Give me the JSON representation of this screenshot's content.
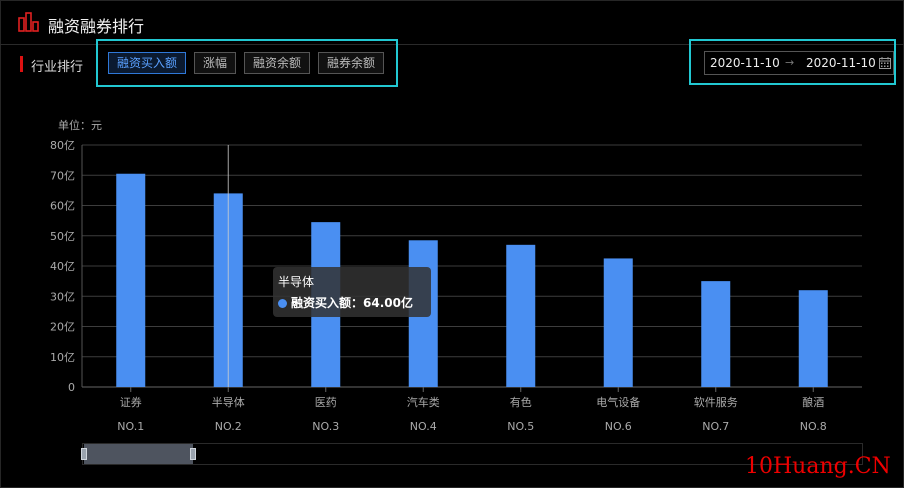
{
  "header": {
    "title": "融资融券排行",
    "logo_icon": "bar-chart-icon"
  },
  "section": {
    "label": "行业排行"
  },
  "tabs": [
    {
      "label": "融资买入额",
      "active": true
    },
    {
      "label": "涨幅",
      "active": false
    },
    {
      "label": "融资余额",
      "active": false
    },
    {
      "label": "融券余额",
      "active": false
    }
  ],
  "date_range": {
    "start": "2020-11-10",
    "separator": "→",
    "end": "2020-11-10",
    "icon": "calendar-icon"
  },
  "unit_label": "单位：元",
  "tooltip": {
    "title": "半导体",
    "series": "融资买入额",
    "value": "64.00亿"
  },
  "watermark": "10Huang.CN",
  "colors": {
    "bar": "#4a8ff2",
    "active_tab": "#5aa0ff",
    "highlight": "#22c8d2",
    "accent": "#d11"
  },
  "chart_data": {
    "type": "bar",
    "categories": [
      "证券",
      "半导体",
      "医药",
      "汽车类",
      "有色",
      "电气设备",
      "软件服务",
      "酿酒"
    ],
    "ranks": [
      "NO.1",
      "NO.2",
      "NO.3",
      "NO.4",
      "NO.5",
      "NO.6",
      "NO.7",
      "NO.8"
    ],
    "values": [
      70.5,
      64.0,
      54.5,
      48.5,
      47.0,
      42.5,
      35.0,
      32.0
    ],
    "y_ticks": [
      "0",
      "10亿",
      "20亿",
      "30亿",
      "40亿",
      "50亿",
      "60亿",
      "70亿",
      "80亿"
    ],
    "ylim": [
      0,
      80
    ],
    "grid": true,
    "highlighted_category": "半导体"
  }
}
